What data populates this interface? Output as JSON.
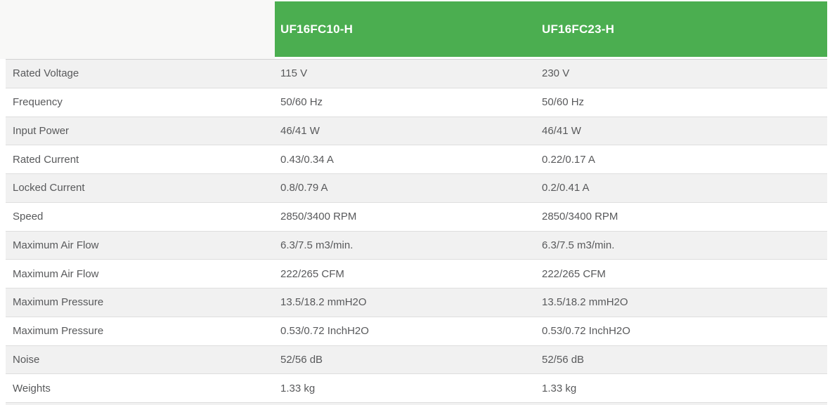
{
  "table": {
    "columns": [
      {
        "label": "UF16FC10-H"
      },
      {
        "label": "UF16FC23-H"
      }
    ],
    "rows": [
      {
        "label": "Rated Voltage",
        "col1": "115 V",
        "col2": "230 V"
      },
      {
        "label": "Frequency",
        "col1": "50/60 Hz",
        "col2": "50/60 Hz"
      },
      {
        "label": "Input Power",
        "col1": "46/41 W",
        "col2": "46/41 W"
      },
      {
        "label": "Rated Current",
        "col1": "0.43/0.34 A",
        "col2": "0.22/0.17 A"
      },
      {
        "label": "Locked Current",
        "col1": "0.8/0.79 A",
        "col2": "0.2/0.41 A"
      },
      {
        "label": "Speed",
        "col1": "2850/3400 RPM",
        "col2": "2850/3400 RPM"
      },
      {
        "label": "Maximum Air Flow",
        "col1": "6.3/7.5 m3/min.",
        "col2": "6.3/7.5 m3/min."
      },
      {
        "label": "Maximum Air Flow",
        "col1": "222/265 CFM",
        "col2": "222/265 CFM"
      },
      {
        "label": "Maximum Pressure",
        "col1": "13.5/18.2 mmH2O",
        "col2": "13.5/18.2 mmH2O"
      },
      {
        "label": "Maximum Pressure",
        "col1": "0.53/0.72 InchH2O",
        "col2": "0.53/0.72 InchH2O"
      },
      {
        "label": "Noise",
        "col1": "52/56 dB",
        "col2": "52/56 dB"
      },
      {
        "label": "Weights",
        "col1": "1.33 kg",
        "col2": "1.33 kg"
      }
    ]
  },
  "colors": {
    "header_bg": "#4bae50",
    "header_text": "#ffffff",
    "corner_bg": "#f8f8f7",
    "row_alt_bg": "#f1f1f1",
    "row_bg": "#ffffff",
    "text": "#58595b",
    "border": "#dedede"
  }
}
